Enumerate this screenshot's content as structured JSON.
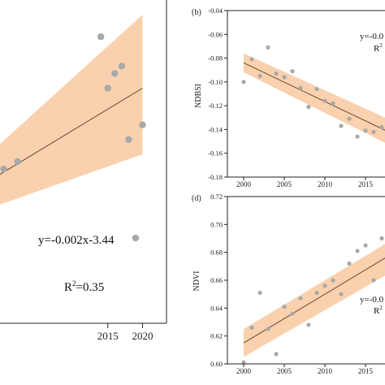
{
  "chart_data": [
    {
      "panel": "",
      "type": "scatter",
      "fit_color": "#f9c9a0",
      "line_color": "#6b5a3a",
      "point_color": "#a8a8a8",
      "xlim": [
        1999,
        2021
      ],
      "x_ticks": [
        "2015",
        "2020"
      ],
      "ylim": [
        -0.022,
        0.0
      ],
      "x": [
        2000,
        2002,
        2014,
        2015,
        2016,
        2017,
        2018,
        2019,
        2020
      ],
      "y": [
        -0.0115,
        -0.011,
        -0.0025,
        -0.006,
        -0.005,
        -0.0045,
        -0.0095,
        -0.0162,
        -0.0085
      ],
      "fit": {
        "x0": 1999,
        "y0": -0.012,
        "x1": 2020,
        "y1": -0.006
      },
      "band": {
        "upper0": -0.01,
        "upper1": -0.001,
        "lower0": -0.014,
        "lower1": -0.0105
      },
      "equation": "y=-0.002x-3.44",
      "r2_label": "R",
      "r2_sup": "2",
      "r2_value": "=0.35"
    },
    {
      "panel": "(b)",
      "type": "scatter",
      "ylabel": "NDBSI",
      "fit_color": "#f9c9a0",
      "line_color": "#6b5a3a",
      "point_color": "#a8a8a8",
      "xlim": [
        1998,
        2020
      ],
      "ylim": [
        -0.18,
        -0.04
      ],
      "y_ticks": [
        "-0.04",
        "-0.06",
        "-0.08",
        "-0.10",
        "-0.12",
        "-0.14",
        "-0.16",
        "-0.18"
      ],
      "x_ticks": [
        "2000",
        "2005",
        "2010",
        "2015"
      ],
      "x": [
        2000,
        2001,
        2002,
        2003,
        2004,
        2005,
        2006,
        2007,
        2008,
        2009,
        2010,
        2011,
        2012,
        2013,
        2014,
        2015,
        2016,
        2017
      ],
      "y": [
        -0.1,
        -0.081,
        -0.095,
        -0.071,
        -0.093,
        -0.096,
        -0.091,
        -0.105,
        -0.121,
        -0.106,
        -0.116,
        -0.118,
        -0.137,
        -0.131,
        -0.146,
        -0.141,
        -0.142,
        -0.138
      ],
      "fit": {
        "x0": 2000,
        "y0": -0.084,
        "x1": 2020,
        "y1": -0.149
      },
      "band": {
        "upper0": -0.076,
        "upper1": -0.138,
        "lower0": -0.092,
        "lower1": -0.16
      },
      "equation": "y=-0.0",
      "r2_label": "R",
      "r2_sup": "2",
      "r2_value": ""
    },
    {
      "panel": "(d)",
      "type": "scatter",
      "ylabel": "NDVI",
      "fit_color": "#f9c9a0",
      "line_color": "#6b5a3a",
      "point_color": "#a8a8a8",
      "xlim": [
        1998,
        2020
      ],
      "ylim": [
        0.6,
        0.72
      ],
      "y_ticks": [
        "0.72",
        "0.70",
        "0.68",
        "0.66",
        "0.64",
        "0.62",
        "0.60"
      ],
      "x_ticks": [
        "2000",
        "2005",
        "2010",
        "2015"
      ],
      "x": [
        2000,
        2001,
        2002,
        2003,
        2004,
        2005,
        2006,
        2007,
        2008,
        2009,
        2010,
        2011,
        2012,
        2013,
        2014,
        2015,
        2016,
        2017
      ],
      "y": [
        0.601,
        0.626,
        0.651,
        0.625,
        0.607,
        0.641,
        0.636,
        0.647,
        0.628,
        0.651,
        0.656,
        0.66,
        0.65,
        0.672,
        0.681,
        0.685,
        0.66,
        0.69
      ],
      "fit": {
        "x0": 2000,
        "y0": 0.615,
        "x1": 2020,
        "y1": 0.685
      },
      "band": {
        "upper0": 0.625,
        "upper1": 0.695,
        "lower0": 0.605,
        "lower1": 0.672
      },
      "equation": "y=-0.0",
      "r2_label": "R",
      "r2_sup": "2",
      "r2_value": ""
    }
  ]
}
